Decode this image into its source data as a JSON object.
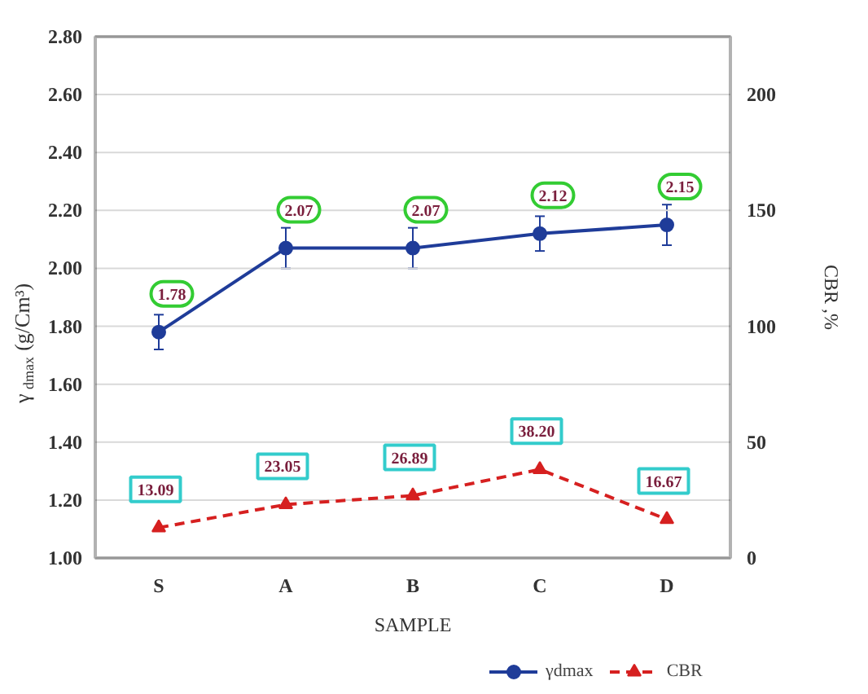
{
  "chart_data": {
    "type": "line",
    "xlabel": "SAMPLE",
    "ylabel": "γ$_{dmax}$(g/Cm³)",
    "y2label": "CBR ,%",
    "categories": [
      "S",
      "A",
      "B",
      "C",
      "D"
    ],
    "series": [
      {
        "name": "γdmax",
        "color": "#1f3c99",
        "values": [
          1.78,
          2.07,
          2.07,
          2.12,
          2.15
        ],
        "errors": [
          0.06,
          0.07,
          0.07,
          0.06,
          0.07
        ],
        "marker": "circle",
        "line_style": "solid"
      },
      {
        "name": "CBR",
        "color": "#d62020",
        "values": [
          13.09,
          23.05,
          26.89,
          38.2,
          16.67
        ],
        "axis": "y2",
        "value_labels": [
          "13.09",
          "23.05",
          "26.89",
          "38.20",
          "16.67"
        ],
        "marker": "triangle",
        "line_style": "dashed"
      }
    ],
    "ylim": [
      1.0,
      2.8
    ],
    "yticks": [
      {
        "value": 1.0,
        "label": "1.00"
      },
      {
        "value": 1.2,
        "label": "1.20"
      },
      {
        "value": 1.4,
        "label": "1.40"
      },
      {
        "value": 1.6,
        "label": "1.60"
      },
      {
        "value": 1.8,
        "label": "1.80"
      },
      {
        "value": 2.0,
        "label": "2.00"
      },
      {
        "value": 2.2,
        "label": "2.20"
      },
      {
        "value": 2.4,
        "label": "2.40"
      },
      {
        "value": 2.6,
        "label": "2.60"
      },
      {
        "value": 2.8,
        "label": "2.80"
      }
    ],
    "y2lim": [
      0,
      225
    ],
    "y2ticks": [
      0,
      50,
      100,
      150,
      200
    ],
    "grid": "y",
    "legend": "bottom right",
    "data_labels": true
  }
}
